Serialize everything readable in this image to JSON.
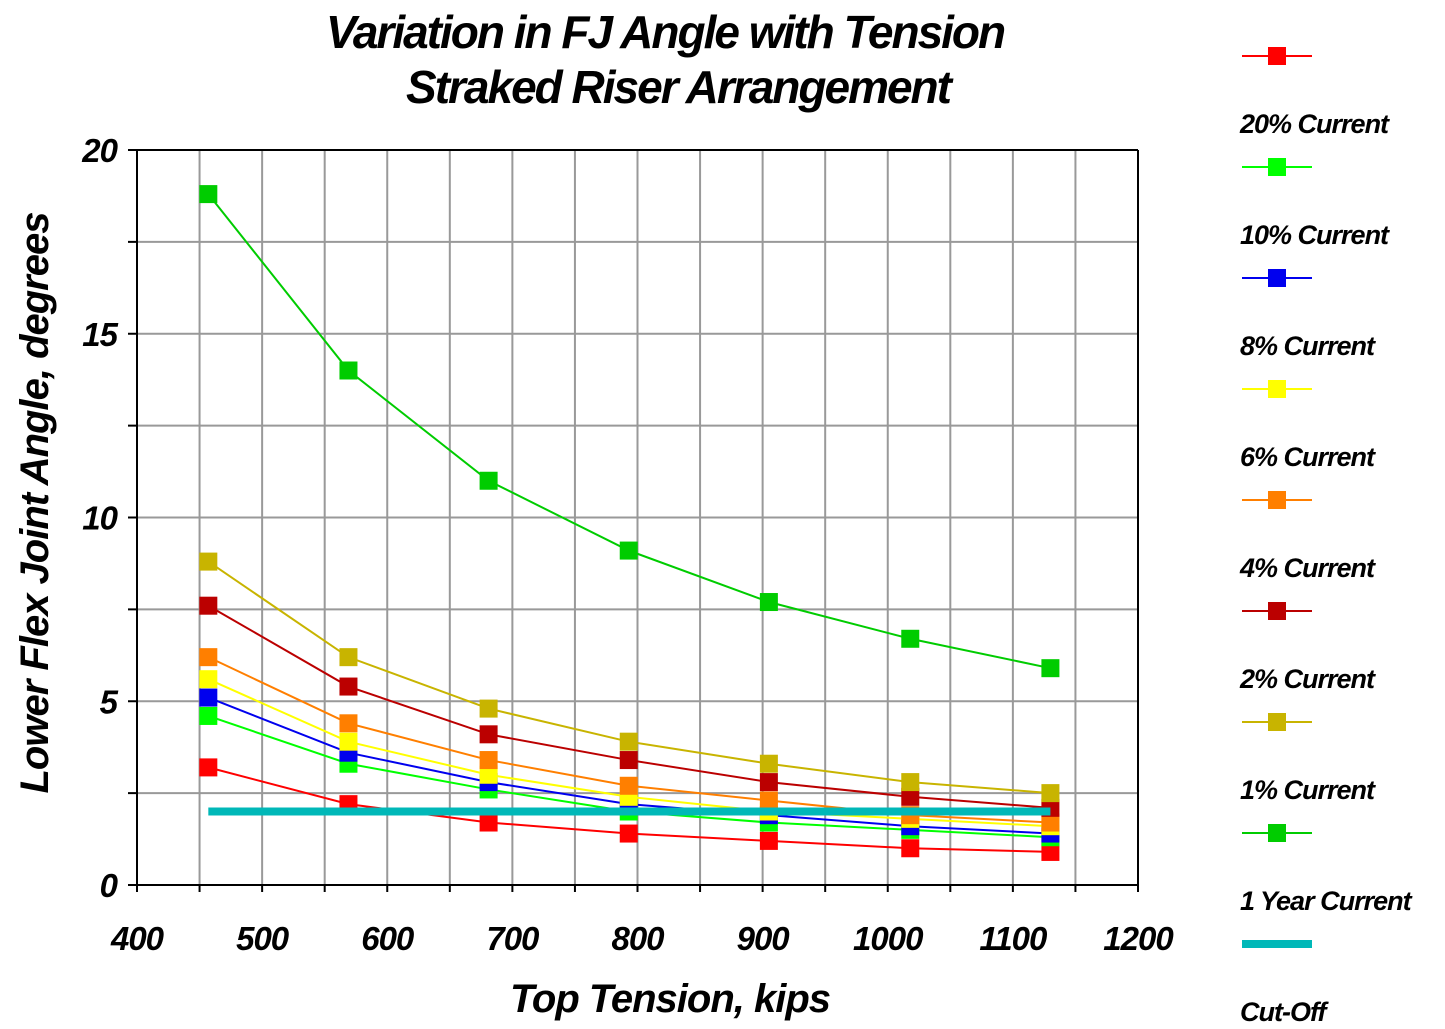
{
  "chart_data": {
    "type": "line",
    "title_line1": "Variation in FJ Angle with Tension",
    "title_line2": "Straked Riser Arrangement",
    "xlabel": "Top Tension, kips",
    "ylabel": "Lower Flex Joint Angle, degrees",
    "xlim": [
      400,
      1200
    ],
    "ylim": [
      0,
      20
    ],
    "x_ticks": [
      400,
      500,
      600,
      700,
      800,
      900,
      1000,
      1100,
      1200
    ],
    "y_ticks": [
      0,
      5,
      10,
      15,
      20
    ],
    "grid": true,
    "legend_position": "right",
    "x": [
      457,
      569,
      681,
      793,
      905,
      1018,
      1130
    ],
    "series": [
      {
        "name": "20% Current",
        "color": "#00cc00",
        "values": [
          18.8,
          14.0,
          11.0,
          9.1,
          7.7,
          6.7,
          5.9
        ]
      },
      {
        "name": "10% Current",
        "color": "#c8b400",
        "values": [
          8.8,
          6.2,
          4.8,
          3.9,
          3.3,
          2.8,
          2.5
        ]
      },
      {
        "name": "8% Current",
        "color": "#bb0000",
        "values": [
          7.6,
          5.4,
          4.1,
          3.4,
          2.8,
          2.4,
          2.1
        ]
      },
      {
        "name": "6% Current",
        "color": "#ff7f00",
        "values": [
          6.2,
          4.4,
          3.4,
          2.7,
          2.3,
          1.9,
          1.7
        ]
      },
      {
        "name": "4% Current",
        "color": "#ffff00",
        "values": [
          5.6,
          3.9,
          3.0,
          2.4,
          2.0,
          1.8,
          1.6
        ]
      },
      {
        "name": "2% Current",
        "color": "#0000ee",
        "values": [
          5.1,
          3.6,
          2.8,
          2.2,
          1.9,
          1.6,
          1.4
        ]
      },
      {
        "name": "1% Current",
        "color": "#00ff00",
        "values": [
          4.6,
          3.3,
          2.6,
          2.0,
          1.7,
          1.5,
          1.3
        ]
      },
      {
        "name": "1 Year Current",
        "color": "#ff0000",
        "values": [
          3.2,
          2.2,
          1.7,
          1.4,
          1.2,
          1.0,
          0.9
        ]
      }
    ],
    "cutoff": {
      "name": "Cut-Off",
      "color": "#00b8b8",
      "x": [
        457,
        1130
      ],
      "value": 2.0
    },
    "legend_order": [
      {
        "marker_color": "#ff0000",
        "label": "20% Current"
      },
      {
        "marker_color": "#00ff00",
        "label": "10% Current"
      },
      {
        "marker_color": "#0000ee",
        "label": "8% Current"
      },
      {
        "marker_color": "#ffff00",
        "label": "6% Current"
      },
      {
        "marker_color": "#ff7f00",
        "label": "4% Current"
      },
      {
        "marker_color": "#bb0000",
        "label": "2% Current"
      },
      {
        "marker_color": "#c8b400",
        "label": "1% Current"
      },
      {
        "marker_color": "#00cc00",
        "label": "1 Year Current"
      },
      {
        "marker_color": "#00b8b8",
        "label": "Cut-Off",
        "is_band": true
      }
    ]
  }
}
